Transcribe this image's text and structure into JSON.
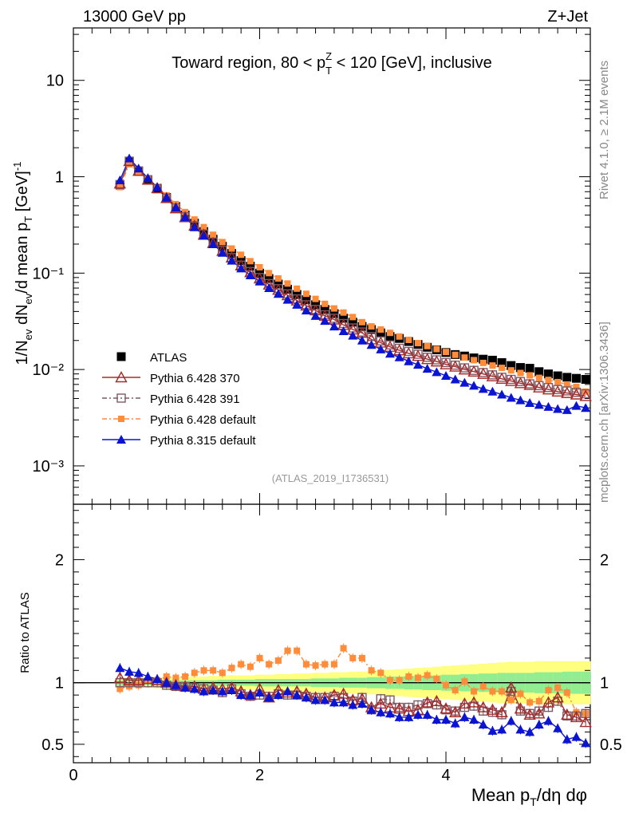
{
  "header": {
    "left_label": "13000 GeV pp",
    "right_label": "Z+Jet",
    "side_label_top": "Rivet 4.1.0, ≥ 2.1M events",
    "side_label_bottom": "mcplots.cern.ch [arXiv:1306.3436]",
    "watermark": "(ATLAS_2019_I1736531)"
  },
  "colors": {
    "data": "#000000",
    "p370": "#a52a2a",
    "p391": "#7f5a66",
    "pdef": "#ff8c3a",
    "p8": "#0a14d2",
    "band_stat": "#90ee90",
    "band_total": "#ffff80"
  },
  "chart_data": [
    {
      "panel": "main",
      "type": "scatter",
      "title": "Toward region, 80 < pT^Z < 120 [GeV], inclusive",
      "title_parts": [
        "Toward region, 80 < p",
        "Z",
        "T",
        " < 120 [GeV], inclusive"
      ],
      "ylabel": "1/N_ev dN_ev/d mean p_T [GeV]^-1",
      "yscale": "log",
      "ylim": [
        0.0004,
        35
      ],
      "xlim": [
        0,
        5.55
      ],
      "yticks": [
        {
          "value": 10,
          "label": "10"
        },
        {
          "value": 1,
          "label": "1"
        },
        {
          "value": 0.1,
          "label": "10⁻¹"
        },
        {
          "value": 0.01,
          "label": "10⁻²"
        },
        {
          "value": 0.001,
          "label": "10⁻³"
        }
      ],
      "x": [
        0.5,
        0.6,
        0.7,
        0.8,
        0.9,
        1.0,
        1.1,
        1.2,
        1.3,
        1.4,
        1.5,
        1.6,
        1.7,
        1.8,
        1.9,
        2.0,
        2.1,
        2.2,
        2.3,
        2.4,
        2.5,
        2.6,
        2.7,
        2.8,
        2.9,
        3.0,
        3.1,
        3.2,
        3.3,
        3.4,
        3.5,
        3.6,
        3.7,
        3.8,
        3.9,
        4.0,
        4.1,
        4.2,
        4.3,
        4.4,
        4.5,
        4.6,
        4.7,
        4.8,
        4.9,
        5.0,
        5.1,
        5.2,
        5.3,
        5.4,
        5.5
      ],
      "series": [
        {
          "name": "ATLAS",
          "key": "data",
          "marker": "square",
          "values": [
            0.82,
            1.45,
            1.15,
            0.93,
            0.76,
            0.61,
            0.49,
            0.4,
            0.33,
            0.27,
            0.225,
            0.19,
            0.16,
            0.135,
            0.118,
            0.1,
            0.088,
            0.077,
            0.068,
            0.06,
            0.053,
            0.047,
            0.042,
            0.038,
            0.034,
            0.031,
            0.028,
            0.026,
            0.024,
            0.022,
            0.021,
            0.0195,
            0.0182,
            0.017,
            0.016,
            0.015,
            0.0143,
            0.0138,
            0.0132,
            0.0128,
            0.0125,
            0.0118,
            0.011,
            0.0105,
            0.0103,
            0.0095,
            0.009,
            0.0086,
            0.0083,
            0.0081,
            0.0079
          ]
        },
        {
          "name": "Pythia 6.428 370",
          "key": "p370",
          "marker": "triangle-open",
          "values": [
            0.85,
            1.45,
            1.15,
            0.93,
            0.76,
            0.6,
            0.47,
            0.38,
            0.31,
            0.25,
            0.205,
            0.17,
            0.145,
            0.12,
            0.102,
            0.088,
            0.076,
            0.067,
            0.059,
            0.052,
            0.046,
            0.041,
            0.036,
            0.033,
            0.029,
            0.026,
            0.024,
            0.0205,
            0.019,
            0.0172,
            0.0158,
            0.0147,
            0.0138,
            0.0128,
            0.0121,
            0.0113,
            0.0107,
            0.01,
            0.0095,
            0.009,
            0.0085,
            0.008,
            0.0076,
            0.0072,
            0.0069,
            0.0065,
            0.0062,
            0.0059,
            0.0057,
            0.0055,
            0.0053
          ]
        },
        {
          "name": "Pythia 6.428 391",
          "key": "p391",
          "marker": "square-open",
          "values": [
            0.83,
            1.45,
            1.14,
            0.93,
            0.75,
            0.6,
            0.475,
            0.385,
            0.31,
            0.255,
            0.21,
            0.172,
            0.145,
            0.121,
            0.104,
            0.09,
            0.078,
            0.069,
            0.061,
            0.054,
            0.047,
            0.042,
            0.037,
            0.034,
            0.03,
            0.027,
            0.0245,
            0.022,
            0.0198,
            0.018,
            0.0166,
            0.0154,
            0.0144,
            0.0134,
            0.0126,
            0.0118,
            0.0111,
            0.0104,
            0.0098,
            0.0093,
            0.0088,
            0.0083,
            0.0079,
            0.0075,
            0.0071,
            0.0068,
            0.0065,
            0.0062,
            0.006,
            0.0058,
            0.0056
          ]
        },
        {
          "name": "Pythia 6.428 default",
          "key": "pdef",
          "marker": "square-small",
          "values": [
            0.78,
            1.35,
            1.12,
            0.95,
            0.78,
            0.64,
            0.52,
            0.43,
            0.36,
            0.3,
            0.25,
            0.21,
            0.18,
            0.155,
            0.133,
            0.115,
            0.1,
            0.088,
            0.078,
            0.069,
            0.061,
            0.054,
            0.048,
            0.043,
            0.039,
            0.035,
            0.031,
            0.028,
            0.026,
            0.024,
            0.022,
            0.0203,
            0.0188,
            0.0175,
            0.0163,
            0.0152,
            0.0142,
            0.0133,
            0.0125,
            0.0117,
            0.011,
            0.0104,
            0.0098,
            0.0092,
            0.0087,
            0.0082,
            0.0078,
            0.0074,
            0.007,
            0.0066,
            0.0059
          ]
        },
        {
          "name": "Pythia 8.315 default",
          "key": "p8",
          "marker": "triangle",
          "values": [
            0.92,
            1.55,
            1.22,
            0.97,
            0.78,
            0.61,
            0.48,
            0.38,
            0.3,
            0.245,
            0.2,
            0.163,
            0.135,
            0.112,
            0.095,
            0.082,
            0.07,
            0.061,
            0.053,
            0.047,
            0.041,
            0.036,
            0.032,
            0.028,
            0.025,
            0.0225,
            0.02,
            0.018,
            0.0162,
            0.0146,
            0.0134,
            0.0122,
            0.0112,
            0.0102,
            0.0094,
            0.0086,
            0.0079,
            0.0073,
            0.0068,
            0.0063,
            0.0059,
            0.0055,
            0.0051,
            0.0048,
            0.0045,
            0.0043,
            0.0041,
            0.0039,
            0.0038,
            0.0042,
            0.004
          ]
        }
      ],
      "legend": {
        "placement": "lower-left",
        "entries": [
          "ATLAS",
          "Pythia 6.428 370",
          "Pythia 6.428 391",
          "Pythia 6.428 default",
          "Pythia 8.315 default"
        ]
      }
    },
    {
      "panel": "ratio",
      "type": "scatter",
      "ylabel": "Ratio to ATLAS",
      "xlabel": "Mean p_T/dη dφ",
      "xlabel_parts": [
        "Mean p",
        "T",
        "/dη dφ"
      ],
      "ylim": [
        0.35,
        2.45
      ],
      "xlim": [
        0,
        5.55
      ],
      "reference_line": 1,
      "yticks": [
        {
          "value": 0.5,
          "label": "0.5"
        },
        {
          "value": 1,
          "label": "1"
        },
        {
          "value": 2,
          "label": "2"
        }
      ],
      "xticks": [
        {
          "value": 0,
          "label": "0"
        },
        {
          "value": 2,
          "label": "2"
        },
        {
          "value": 4,
          "label": "4"
        }
      ],
      "x": [
        0.5,
        0.6,
        0.7,
        0.8,
        0.9,
        1.0,
        1.1,
        1.2,
        1.3,
        1.4,
        1.5,
        1.6,
        1.7,
        1.8,
        1.9,
        2.0,
        2.1,
        2.2,
        2.3,
        2.4,
        2.5,
        2.6,
        2.7,
        2.8,
        2.9,
        3.0,
        3.1,
        3.2,
        3.3,
        3.4,
        3.5,
        3.6,
        3.7,
        3.8,
        3.9,
        4.0,
        4.1,
        4.2,
        4.3,
        4.4,
        4.5,
        4.6,
        4.7,
        4.8,
        4.9,
        5.0,
        5.1,
        5.2,
        5.3,
        5.4,
        5.5
      ],
      "band_stat": [
        0.02,
        0.02,
        0.02,
        0.02,
        0.02,
        0.02,
        0.02,
        0.02,
        0.02,
        0.02,
        0.02,
        0.025,
        0.025,
        0.025,
        0.025,
        0.03,
        0.03,
        0.03,
        0.03,
        0.03,
        0.03,
        0.035,
        0.035,
        0.035,
        0.04,
        0.04,
        0.04,
        0.045,
        0.045,
        0.05,
        0.05,
        0.055,
        0.055,
        0.06,
        0.06,
        0.065,
        0.065,
        0.07,
        0.07,
        0.075,
        0.075,
        0.08,
        0.08,
        0.08,
        0.08,
        0.085,
        0.085,
        0.085,
        0.09,
        0.09,
        0.09
      ],
      "band_total": [
        0.04,
        0.04,
        0.04,
        0.04,
        0.045,
        0.045,
        0.045,
        0.05,
        0.05,
        0.05,
        0.055,
        0.055,
        0.06,
        0.06,
        0.06,
        0.065,
        0.065,
        0.07,
        0.07,
        0.075,
        0.075,
        0.08,
        0.08,
        0.085,
        0.085,
        0.09,
        0.09,
        0.095,
        0.1,
        0.105,
        0.11,
        0.115,
        0.12,
        0.125,
        0.13,
        0.135,
        0.14,
        0.145,
        0.15,
        0.155,
        0.16,
        0.165,
        0.17,
        0.17,
        0.17,
        0.175,
        0.175,
        0.175,
        0.175,
        0.175,
        0.175
      ],
      "series": [
        {
          "name": "Pythia 6.428 370",
          "key": "p370",
          "marker": "triangle-open",
          "values": [
            1.04,
            1.02,
            1.02,
            1.03,
            1.02,
            1.0,
            0.98,
            0.97,
            0.97,
            0.95,
            0.96,
            0.95,
            0.96,
            0.93,
            0.9,
            0.95,
            0.88,
            0.94,
            0.92,
            0.93,
            0.91,
            0.88,
            0.88,
            0.9,
            0.91,
            0.86,
            0.87,
            0.8,
            0.83,
            0.8,
            0.79,
            0.77,
            0.78,
            0.84,
            0.85,
            0.79,
            0.76,
            0.83,
            0.84,
            0.8,
            0.78,
            0.76,
            0.96,
            0.79,
            0.74,
            0.75,
            0.84,
            0.88,
            0.74,
            0.72,
            0.68
          ]
        },
        {
          "name": "Pythia 6.428 391",
          "key": "p391",
          "marker": "square-open",
          "values": [
            1.0,
            1.0,
            1.0,
            1.0,
            1.0,
            0.98,
            0.97,
            0.97,
            0.96,
            0.95,
            0.94,
            0.92,
            0.95,
            0.91,
            0.89,
            0.9,
            0.89,
            0.91,
            0.9,
            0.9,
            0.89,
            0.88,
            0.88,
            0.89,
            0.88,
            0.85,
            0.88,
            0.78,
            0.87,
            0.86,
            0.8,
            0.8,
            0.82,
            0.83,
            0.82,
            0.78,
            0.77,
            0.8,
            0.81,
            0.77,
            0.76,
            0.74,
            0.93,
            0.77,
            0.75,
            0.77,
            0.8,
            0.85,
            0.73,
            0.73,
            0.75
          ]
        },
        {
          "name": "Pythia 6.428 default",
          "key": "pdef",
          "marker": "square-small",
          "values": [
            0.95,
            0.97,
            0.98,
            1.02,
            1.02,
            1.05,
            1.04,
            1.05,
            1.08,
            1.1,
            1.1,
            1.08,
            1.12,
            1.15,
            1.13,
            1.2,
            1.15,
            1.18,
            1.26,
            1.26,
            1.15,
            1.14,
            1.15,
            1.15,
            1.28,
            1.2,
            1.2,
            1.1,
            1.08,
            1.02,
            1.02,
            1.05,
            1.04,
            1.06,
            1.03,
            0.98,
            0.94,
            1.01,
            0.93,
            0.97,
            0.93,
            0.93,
            0.86,
            0.91,
            0.84,
            0.85,
            0.94,
            0.96,
            0.92,
            0.76,
            0.75
          ]
        },
        {
          "name": "Pythia 8.315 default",
          "key": "p8",
          "marker": "triangle",
          "values": [
            1.12,
            1.09,
            1.08,
            1.05,
            1.03,
            1.0,
            0.98,
            0.96,
            0.95,
            0.93,
            0.94,
            0.93,
            0.94,
            0.9,
            0.9,
            0.92,
            0.88,
            0.9,
            0.93,
            0.9,
            0.88,
            0.86,
            0.86,
            0.84,
            0.84,
            0.82,
            0.83,
            0.78,
            0.76,
            0.75,
            0.72,
            0.72,
            0.74,
            0.74,
            0.7,
            0.7,
            0.67,
            0.72,
            0.7,
            0.66,
            0.61,
            0.62,
            0.69,
            0.62,
            0.6,
            0.66,
            0.69,
            0.63,
            0.54,
            0.56,
            0.51
          ]
        }
      ]
    }
  ]
}
